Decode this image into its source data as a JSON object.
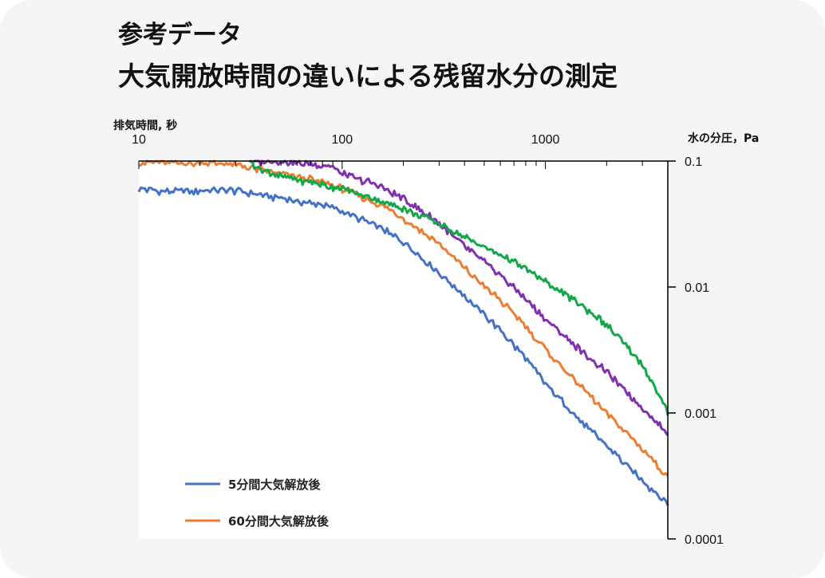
{
  "header": {
    "title_line1": "参考データ",
    "title_line2": "大気開放時間の違いによる残留水分の測定"
  },
  "chart_data": {
    "type": "line",
    "xlabel": "排気時間, 秒",
    "ylabel": "水の分圧，Pa",
    "x_scale": "log",
    "y_scale": "log",
    "xlim": [
      10,
      4000
    ],
    "ylim": [
      0.0001,
      0.1
    ],
    "x_tick_labels": [
      "10",
      "100",
      "1000"
    ],
    "y_tick_labels": [
      "0.1",
      "0.01",
      "0.001",
      "0.0001"
    ],
    "grid": false,
    "legend_position": "bottom-left",
    "series": [
      {
        "name": "5分間大気解放後",
        "color": "#4472c4",
        "x": [
          10,
          15,
          20,
          30,
          40,
          60,
          80,
          100,
          150,
          200,
          300,
          400,
          600,
          800,
          1000,
          1500,
          2000,
          3000,
          4000
        ],
        "y": [
          0.06,
          0.057,
          0.058,
          0.058,
          0.054,
          0.048,
          0.045,
          0.04,
          0.03,
          0.023,
          0.013,
          0.0085,
          0.0045,
          0.0027,
          0.0017,
          0.00085,
          0.00055,
          0.00029,
          0.00019
        ]
      },
      {
        "name": "60分間大気解放後",
        "color": "#ed7d31",
        "x": [
          10,
          15,
          20,
          30,
          40,
          60,
          80,
          100,
          150,
          200,
          300,
          400,
          600,
          800,
          1000,
          1500,
          2000,
          3000,
          4000
        ],
        "y": [
          0.098,
          0.096,
          0.097,
          0.093,
          0.085,
          0.075,
          0.068,
          0.06,
          0.046,
          0.035,
          0.022,
          0.014,
          0.0078,
          0.0049,
          0.0032,
          0.0016,
          0.001,
          0.00052,
          0.00031
        ]
      },
      {
        "color": "#8030b0",
        "x": [
          35,
          50,
          70,
          90,
          100,
          150,
          200,
          300,
          400,
          600,
          800,
          1000,
          1500,
          2000,
          3000,
          4000
        ],
        "y": [
          0.1,
          0.099,
          0.095,
          0.09,
          0.079,
          0.064,
          0.05,
          0.032,
          0.021,
          0.0125,
          0.008,
          0.0055,
          0.0031,
          0.0021,
          0.0011,
          0.00068
        ]
      },
      {
        "color": "#12a84a",
        "x": [
          35,
          40,
          50,
          70,
          100,
          150,
          200,
          300,
          400,
          600,
          800,
          1000,
          1500,
          2000,
          3000,
          4000
        ],
        "y": [
          0.1,
          0.085,
          0.075,
          0.068,
          0.06,
          0.049,
          0.042,
          0.032,
          0.025,
          0.018,
          0.014,
          0.011,
          0.0072,
          0.005,
          0.0024,
          0.001
        ]
      }
    ]
  }
}
